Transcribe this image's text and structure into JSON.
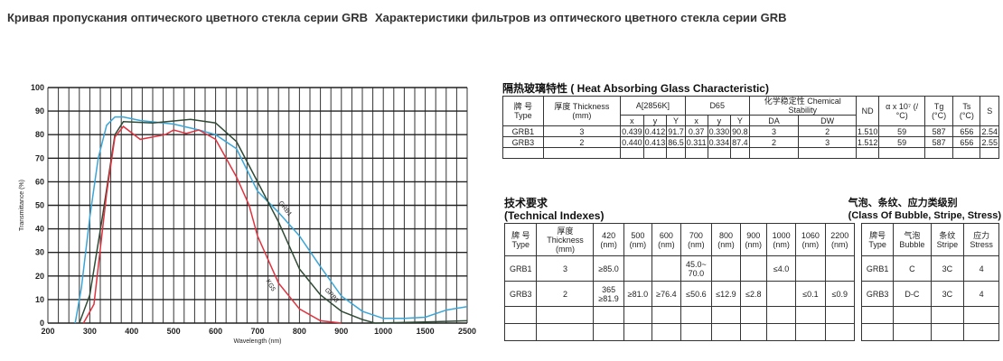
{
  "header": {
    "title_ru_1": "Кривая пропускания оптического цветного стекла серии GRB",
    "title_ru_2": "Характеристики фильтров из оптического цветного стекла серии GRB"
  },
  "chart_data": {
    "type": "line",
    "xlabel": "Wavelength (nm)",
    "ylabel": "Transmittance (%)",
    "x_ticks": [
      200,
      300,
      400,
      500,
      600,
      700,
      800,
      900,
      1000,
      1500,
      2500
    ],
    "y_ticks": [
      0,
      10,
      20,
      30,
      40,
      50,
      60,
      70,
      80,
      90,
      100
    ],
    "ylim": [
      0,
      100
    ],
    "grid": true,
    "series": [
      {
        "name": "GRB1",
        "color": "#3aa6d8",
        "points": [
          [
            265,
            0
          ],
          [
            280,
            15
          ],
          [
            300,
            45
          ],
          [
            320,
            70
          ],
          [
            340,
            84
          ],
          [
            360,
            87.5
          ],
          [
            380,
            87.5
          ],
          [
            420,
            86
          ],
          [
            500,
            84.5
          ],
          [
            560,
            82
          ],
          [
            600,
            80
          ],
          [
            650,
            74
          ],
          [
            700,
            56
          ],
          [
            750,
            47
          ],
          [
            800,
            37
          ],
          [
            850,
            24
          ],
          [
            900,
            11.5
          ],
          [
            950,
            5
          ],
          [
            1000,
            2
          ],
          [
            1250,
            2
          ],
          [
            1500,
            2.5
          ],
          [
            2000,
            5.5
          ],
          [
            2500,
            7
          ]
        ]
      },
      {
        "name": "GRB3",
        "color": "#2f4a35",
        "points": [
          [
            275,
            0
          ],
          [
            300,
            12
          ],
          [
            330,
            45
          ],
          [
            360,
            80
          ],
          [
            380,
            85.5
          ],
          [
            450,
            85
          ],
          [
            540,
            86.5
          ],
          [
            600,
            85
          ],
          [
            650,
            77
          ],
          [
            700,
            60
          ],
          [
            750,
            43
          ],
          [
            800,
            23
          ],
          [
            850,
            12
          ],
          [
            900,
            5
          ],
          [
            950,
            1.5
          ],
          [
            980,
            0
          ],
          [
            1500,
            0.5
          ],
          [
            2500,
            1
          ]
        ]
      },
      {
        "name": "KG5",
        "color": "#e0323e",
        "points": [
          [
            285,
            0
          ],
          [
            310,
            8
          ],
          [
            340,
            55
          ],
          [
            360,
            79
          ],
          [
            380,
            83.5
          ],
          [
            420,
            78
          ],
          [
            480,
            80
          ],
          [
            500,
            82
          ],
          [
            530,
            80.5
          ],
          [
            560,
            82
          ],
          [
            600,
            78
          ],
          [
            650,
            62
          ],
          [
            680,
            50
          ],
          [
            700,
            37
          ],
          [
            750,
            17
          ],
          [
            800,
            6
          ],
          [
            850,
            1
          ],
          [
            900,
            0
          ]
        ]
      }
    ]
  },
  "heat": {
    "title": "隔热玻璃特性 ( Heat Absorbing Glass Characteristic)",
    "h": {
      "type": "牌 号 Type",
      "thick": "厚度 Thickness (mm)",
      "a": "A[2856K]",
      "d65": "D65",
      "chem": "化学稳定性 Chemical Stability",
      "nd": "ND",
      "alpha": "α x 10⁷ (/°C)",
      "tg": "Tg (°C)",
      "ts": "Ts (°C)",
      "s": "S",
      "x": "x",
      "y": "y",
      "Y": "Y",
      "da": "DA",
      "dw": "DW"
    },
    "rows": [
      [
        "GRB1",
        "3",
        "0.439",
        "0.412",
        "91.7",
        "0.37",
        "0.330",
        "90.8",
        "3",
        "2",
        "1.510",
        "59",
        "587",
        "656",
        "2.54"
      ],
      [
        "GRB3",
        "2",
        "0.440",
        "0.413",
        "86.5",
        "0.311",
        "0.334",
        "87.4",
        "2",
        "3",
        "1.512",
        "59",
        "587",
        "656",
        "2.55"
      ]
    ]
  },
  "tech": {
    "title_cn": "技术要求",
    "title_en": "(Technical Indexes)",
    "h": [
      "牌 号 Type",
      "厚度 Thickness (mm)",
      "420 (nm)",
      "500 (nm)",
      "600 (nm)",
      "700 (nm)",
      "800 (nm)",
      "900 (nm)",
      "1000 (nm)",
      "1060 (nm)",
      "2200 (nm)"
    ],
    "rows": [
      [
        "GRB1",
        "3",
        "≥85.0",
        "",
        "",
        "45.0~ 70.0",
        "",
        "",
        "≤4.0",
        "",
        ""
      ],
      [
        "GRB3",
        "2",
        "365 ≥81.9",
        "≥81.0",
        "≥76.4",
        "≤50.6",
        "≤12.9",
        "≤2.8",
        "",
        "≤0.1",
        "≤0.9"
      ]
    ]
  },
  "cls": {
    "title_cn": "气泡、条纹、应力类级别",
    "title_en": "(Class Of Bubble, Stripe, Stress)",
    "h": [
      "牌号 Type",
      "气泡 Bubble",
      "条纹 Stripe",
      "应力 Stress"
    ],
    "rows": [
      [
        "GRB1",
        "C",
        "3C",
        "4"
      ],
      [
        "GRB3",
        "D-C",
        "3C",
        "4"
      ]
    ]
  }
}
